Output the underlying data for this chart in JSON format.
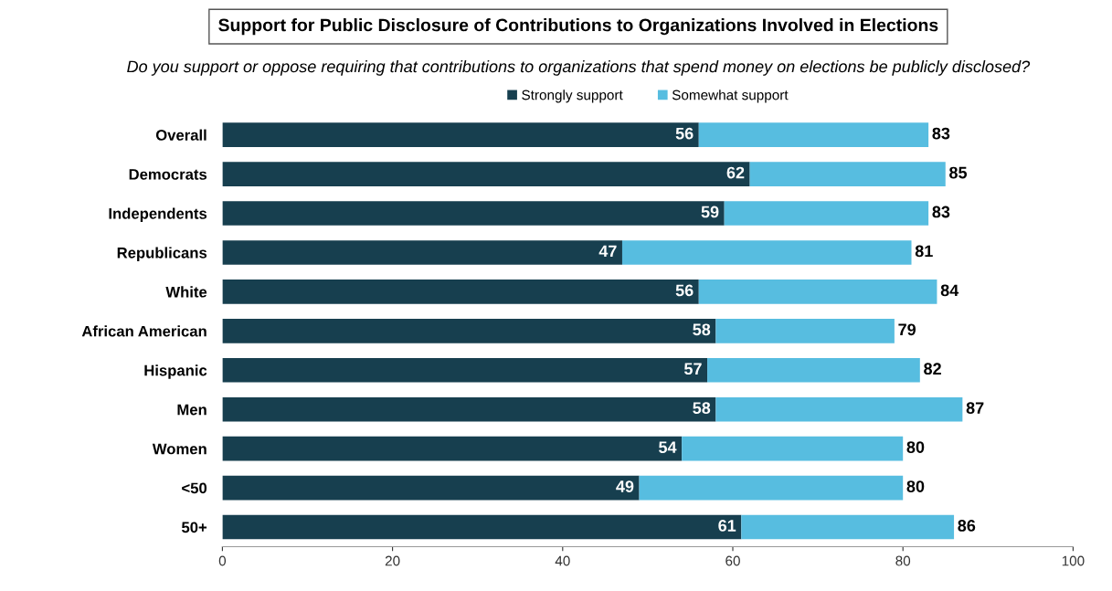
{
  "chart_data": {
    "type": "bar",
    "orientation": "horizontal",
    "stacked": true,
    "title": "Support for Public Disclosure of Contributions to Organizations Involved in Elections",
    "subtitle": "Do you support or oppose requiring that contributions to organizations that spend money on elections be publicly disclosed?",
    "categories": [
      "Overall",
      "Democrats",
      "Independents",
      "Republicans",
      "White",
      "African American",
      "Hispanic",
      "Men",
      "Women",
      "<50",
      "50+"
    ],
    "series": [
      {
        "name": "Strongly support",
        "color": "#173f4f",
        "values": [
          56,
          62,
          59,
          47,
          56,
          58,
          57,
          58,
          54,
          49,
          61
        ],
        "value_labels": [
          "56",
          "62",
          "59",
          "47",
          "56",
          "58",
          "57",
          "58",
          "54",
          "49",
          "61"
        ]
      },
      {
        "name": "Somewhat support",
        "color": "#57bde0",
        "values": [
          27,
          23,
          24,
          34,
          28,
          21,
          25,
          29,
          26,
          31,
          25
        ]
      }
    ],
    "totals": [
      "83",
      "85",
      "83",
      "81",
      "84",
      "79",
      "82",
      "87",
      "80",
      "80",
      "86"
    ],
    "xlim": [
      0,
      100
    ],
    "xticks": [
      0,
      20,
      40,
      60,
      80,
      100
    ],
    "grid": false,
    "legend": "top"
  }
}
